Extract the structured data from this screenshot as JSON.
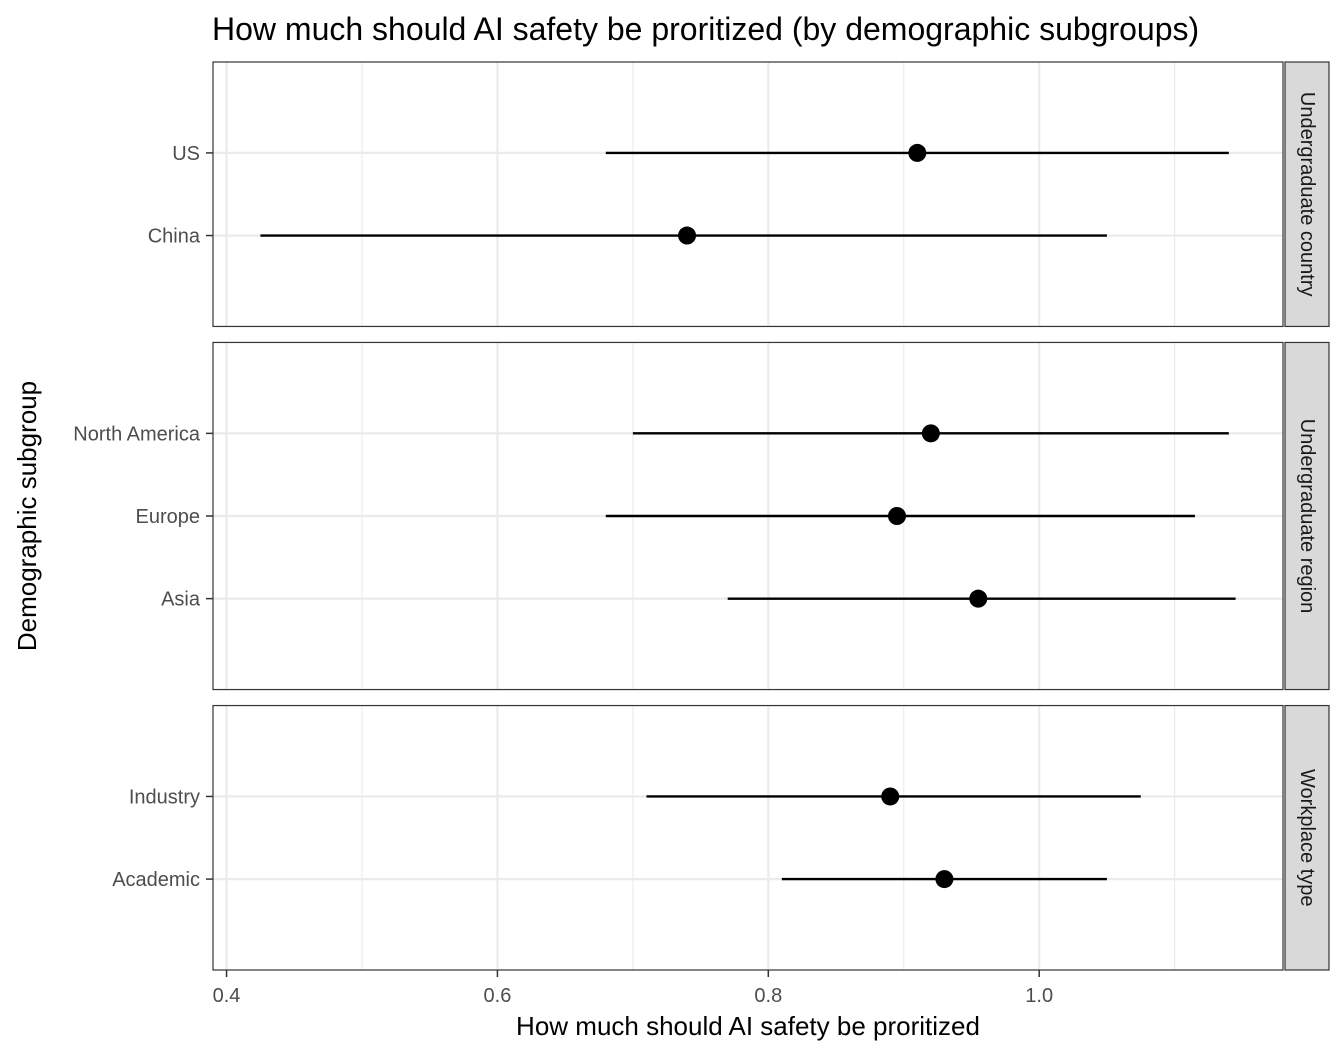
{
  "chart_data": {
    "type": "scatter",
    "variant": "point-range, faceted by row",
    "title": "How much should AI safety be proritized (by demographic subgroups)",
    "xlabel": "How much should AI safety be proritized",
    "ylabel": "Demographic subgroup",
    "xlim": [
      0.39,
      1.18
    ],
    "x_ticks": [
      0.4,
      0.6,
      0.8,
      1.0
    ],
    "x_tick_labels": [
      "0.4",
      "0.6",
      "0.8",
      "1.0"
    ],
    "grid": true,
    "legend": "none",
    "colors": {
      "point": "#000000",
      "strip": "#d9d9d9",
      "grid": "#ebebeb"
    },
    "facets": [
      {
        "label": "Undergraduate country",
        "points": [
          {
            "label": "US",
            "estimate": 0.91,
            "low": 0.68,
            "high": 1.14
          },
          {
            "label": "China",
            "estimate": 0.74,
            "low": 0.425,
            "high": 1.05
          }
        ]
      },
      {
        "label": "Undergraduate region",
        "points": [
          {
            "label": "North America",
            "estimate": 0.92,
            "low": 0.7,
            "high": 1.14
          },
          {
            "label": "Europe",
            "estimate": 0.895,
            "low": 0.68,
            "high": 1.115
          },
          {
            "label": "Asia",
            "estimate": 0.955,
            "low": 0.77,
            "high": 1.145
          }
        ]
      },
      {
        "label": "Workplace type",
        "points": [
          {
            "label": "Industry",
            "estimate": 0.89,
            "low": 0.71,
            "high": 1.075
          },
          {
            "label": "Academic",
            "estimate": 0.93,
            "low": 0.81,
            "high": 1.05
          }
        ]
      }
    ]
  }
}
